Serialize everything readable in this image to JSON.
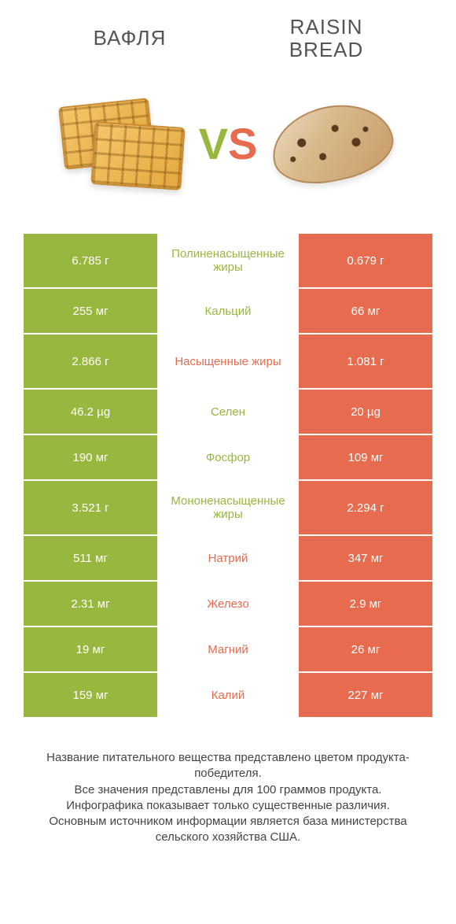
{
  "colors": {
    "green": "#97b73e",
    "orange": "#e76b4e",
    "white": "#ffffff",
    "text": "#555555"
  },
  "header": {
    "left_title": "ВАФЛЯ",
    "right_title_line1": "RAISIN",
    "right_title_line2": "BREAD"
  },
  "vs": {
    "v": "V",
    "s": "S"
  },
  "rows": [
    {
      "left": "6.785 г",
      "label": "Полиненасыщенные жиры",
      "right": "0.679 г",
      "winner": "left",
      "tall": true
    },
    {
      "left": "255 мг",
      "label": "Кальций",
      "right": "66 мг",
      "winner": "left",
      "tall": false
    },
    {
      "left": "2.866 г",
      "label": "Насыщенные жиры",
      "right": "1.081 г",
      "winner": "right",
      "tall": true
    },
    {
      "left": "46.2 µg",
      "label": "Селен",
      "right": "20 µg",
      "winner": "left",
      "tall": false
    },
    {
      "left": "190 мг",
      "label": "Фосфор",
      "right": "109 мг",
      "winner": "left",
      "tall": false
    },
    {
      "left": "3.521 г",
      "label": "Мононенасыщенные жиры",
      "right": "2.294 г",
      "winner": "left",
      "tall": true
    },
    {
      "left": "511 мг",
      "label": "Натрий",
      "right": "347 мг",
      "winner": "right",
      "tall": false
    },
    {
      "left": "2.31 мг",
      "label": "Железо",
      "right": "2.9 мг",
      "winner": "right",
      "tall": false
    },
    {
      "left": "19 мг",
      "label": "Магний",
      "right": "26 мг",
      "winner": "right",
      "tall": false
    },
    {
      "left": "159 мг",
      "label": "Калий",
      "right": "227 мг",
      "winner": "right",
      "tall": false
    }
  ],
  "footer": {
    "line1": "Название питательного вещества представлено цветом продукта-победителя.",
    "line2": "Все значения представлены для 100 граммов продукта.",
    "line3": "Инфографика показывает только существенные различия.",
    "line4": "Основным источником информации является база министерства сельского хозяйства США."
  }
}
